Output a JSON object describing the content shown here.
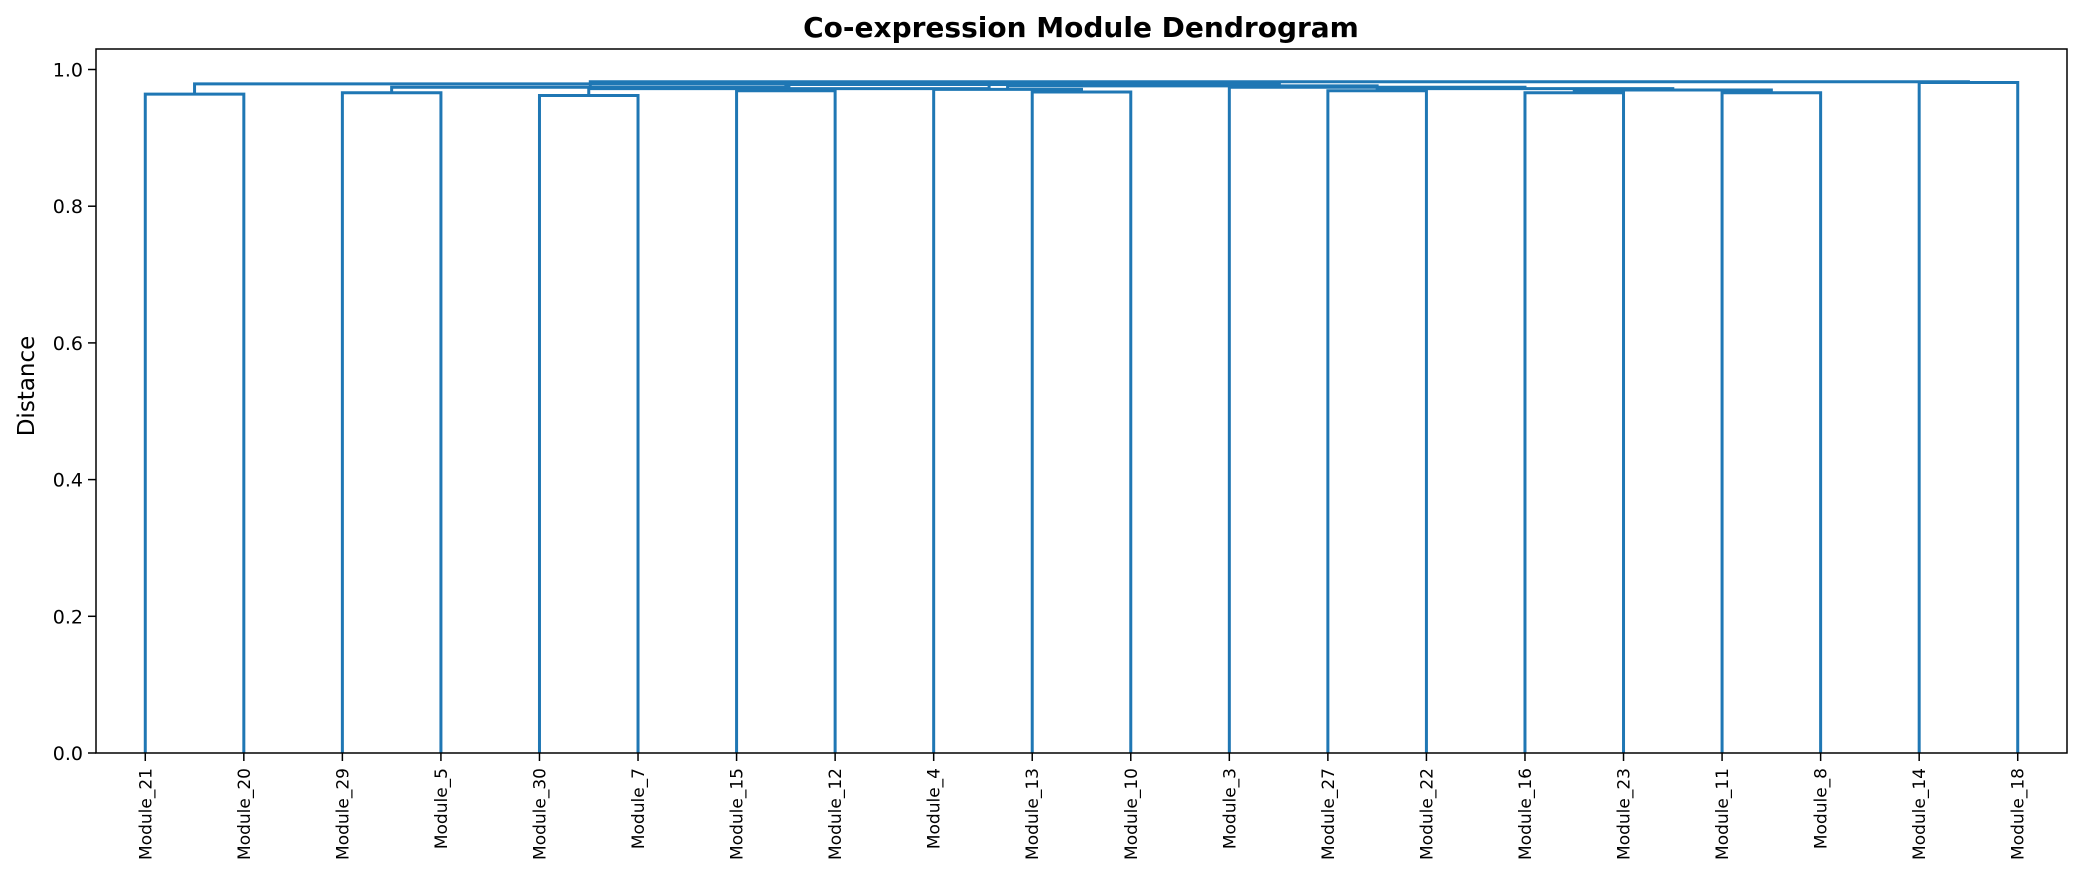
{
  "chart_data": {
    "type": "dendrogram",
    "title": "Co-expression Module Dendrogram",
    "xlabel": "",
    "ylabel": "Distance",
    "ylim": [
      0.0,
      1.03
    ],
    "yticks": [
      "0.0",
      "0.2",
      "0.4",
      "0.6",
      "0.8",
      "1.0"
    ],
    "grid": false,
    "leaf_order": [
      "Module_21",
      "Module_20",
      "Module_29",
      "Module_5",
      "Module_30",
      "Module_7",
      "Module_15",
      "Module_12",
      "Module_4",
      "Module_13",
      "Module_10",
      "Module_3",
      "Module_27",
      "Module_22",
      "Module_16",
      "Module_23",
      "Module_11",
      "Module_8",
      "Module_14",
      "Module_18"
    ],
    "link_color": "#1f77b4",
    "merges": [
      {
        "left": "Module_21",
        "right": "Module_20",
        "height": 0.964
      },
      {
        "left": "Module_29",
        "right": "Module_5",
        "height": 0.966
      },
      {
        "left": "Module_30",
        "right": "Module_7",
        "height": 0.962
      },
      {
        "left": "Module_15",
        "right": "Module_12",
        "height": 0.969
      },
      {
        "left": "Module_13",
        "right": "Module_10",
        "height": 0.967
      },
      {
        "left": "Module_27",
        "right": "Module_22",
        "height": 0.969
      },
      {
        "left": "Module_16",
        "right": "Module_23",
        "height": 0.966
      },
      {
        "left": "Module_11",
        "right": "Module_8",
        "height": 0.966
      },
      {
        "left": "Module_14",
        "right": "Module_18",
        "height": 0.981
      },
      {
        "left": "Module_4",
        "right": "Module_13+Module_10",
        "height": 0.971
      },
      {
        "left": "Module_16+Module_23",
        "right": "Module_11+Module_8",
        "height": 0.97
      },
      {
        "left": "Module_27+Module_22",
        "right": "Module_16+Module_23+Module_11+Module_8",
        "height": 0.972
      },
      {
        "left": "Module_3",
        "right": "Module_27+Module_22+Module_16+Module_23+Module_11+Module_8",
        "height": 0.974
      },
      {
        "left": "Module_4+Module_13+Module_10",
        "right": "Module_3+Module_27+Module_22+Module_16+Module_23+Module_11+Module_8",
        "height": 0.976
      },
      {
        "left": "Module_15+Module_12",
        "right": "Module_4+Module_13+Module_10+Module_3+Module_27+Module_22+Module_16+Module_23+Module_11+Module_8",
        "height": 0.978
      },
      {
        "left": "Module_30+Module_7",
        "right": "Module_15+Module_12+Module_4+Module_13+Module_10+Module_3+Module_27+Module_22+Module_16+Module_23+Module_11+Module_8",
        "height": 0.972
      },
      {
        "left": "Module_29+Module_5",
        "right": "Module_30+Module_7+Module_15+Module_12+Module_4+Module_13+Module_10+Module_3+Module_27+Module_22+Module_16+Module_23+Module_11+Module_8",
        "height": 0.974
      },
      {
        "left": "Module_29+Module_5+Module_30+Module_7+Module_15+Module_12+Module_4+Module_13+Module_10+Module_3+Module_27+Module_22+Module_16+Module_23+Module_11+Module_8",
        "right": "Module_14+Module_18",
        "height": 0.982
      },
      {
        "left": "Module_21+Module_20",
        "right": "Module_29+Module_5+Module_30+Module_7+Module_15+Module_12+Module_4+Module_13+Module_10+Module_3+Module_27+Module_22+Module_16+Module_23+Module_11+Module_8+Module_14+Module_18",
        "height": 0.979
      }
    ]
  }
}
